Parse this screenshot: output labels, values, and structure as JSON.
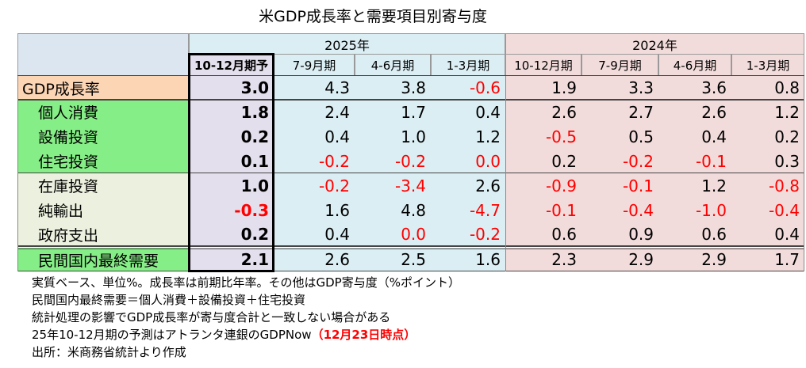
{
  "header": {
    "title": "米GDP成長率と需要項目別寄与度"
  },
  "table": {
    "years": [
      "2025年",
      "2024年"
    ],
    "quarters": [
      "10-12月期予",
      "7-9月期",
      "4-6月期",
      "1-3月期",
      "10-12月期",
      "7-9月期",
      "4-6月期",
      "1-3月期"
    ],
    "rows": [
      {
        "label": "GDP成長率",
        "label_color": "#fcd5b4",
        "values": [
          "3.0",
          "4.3",
          "3.8",
          "-0.6",
          "1.9",
          "3.3",
          "3.6",
          "0.8"
        ],
        "colors": [
          "#000000",
          "#000000",
          "#000000",
          "#ff0000",
          "#000000",
          "#000000",
          "#000000",
          "#000000"
        ]
      },
      {
        "label": "個人消費",
        "label_color": "#86ee86",
        "values": [
          "1.8",
          "2.4",
          "1.7",
          "0.4",
          "2.6",
          "2.7",
          "2.6",
          "1.2"
        ],
        "colors": [
          "#000000",
          "#000000",
          "#000000",
          "#000000",
          "#000000",
          "#000000",
          "#000000",
          "#000000"
        ]
      },
      {
        "label": "設備投資",
        "label_color": "#86ee86",
        "values": [
          "0.2",
          "0.4",
          "1.0",
          "1.2",
          "-0.5",
          "0.5",
          "0.4",
          "0.2"
        ],
        "colors": [
          "#000000",
          "#000000",
          "#000000",
          "#000000",
          "#ff0000",
          "#000000",
          "#000000",
          "#000000"
        ]
      },
      {
        "label": "住宅投資",
        "label_color": "#86ee86",
        "values": [
          "0.1",
          "-0.2",
          "-0.2",
          "0.0",
          "0.2",
          "-0.2",
          "-0.1",
          "0.3"
        ],
        "colors": [
          "#000000",
          "#ff0000",
          "#ff0000",
          "#ff0000",
          "#000000",
          "#ff0000",
          "#ff0000",
          "#000000"
        ]
      },
      {
        "label": "在庫投資",
        "label_color": "#ebf1de",
        "values": [
          "1.0",
          "-0.2",
          "-3.4",
          "2.6",
          "-0.9",
          "-0.1",
          "1.2",
          "-0.8"
        ],
        "colors": [
          "#000000",
          "#ff0000",
          "#ff0000",
          "#000000",
          "#ff0000",
          "#ff0000",
          "#000000",
          "#ff0000"
        ]
      },
      {
        "label": "純輸出",
        "label_color": "#ebf1de",
        "values": [
          "-0.3",
          "1.6",
          "4.8",
          "-4.7",
          "-0.1",
          "-0.4",
          "-1.0",
          "-0.4"
        ],
        "colors": [
          "#ff0000",
          "#000000",
          "#000000",
          "#ff0000",
          "#ff0000",
          "#ff0000",
          "#ff0000",
          "#ff0000"
        ]
      },
      {
        "label": "政府支出",
        "label_color": "#ebf1de",
        "values": [
          "0.2",
          "0.4",
          "0.0",
          "-0.2",
          "0.6",
          "0.9",
          "0.6",
          "0.4"
        ],
        "colors": [
          "#000000",
          "#000000",
          "#ff0000",
          "#ff0000",
          "#000000",
          "#000000",
          "#000000",
          "#000000"
        ]
      },
      {
        "label": "民間国内最終需要",
        "label_color": "#86ee86",
        "values": [
          "2.1",
          "2.6",
          "2.5",
          "1.6",
          "2.3",
          "2.9",
          "2.9",
          "1.7"
        ],
        "colors": [
          "#000000",
          "#000000",
          "#000000",
          "#000000",
          "#000000",
          "#000000",
          "#000000",
          "#000000"
        ]
      }
    ]
  },
  "notes": [
    {
      "text": "実質ベース、単位%。成長率は前期比年率。その他はGDP寄与度（%ポイント）"
    },
    {
      "text": "民間国内最終需要＝個人消費＋設備投資＋住宅投資"
    },
    {
      "text": "統計処理の影響でGDP成長率が寄与度合計と一致しない場合がある"
    },
    {
      "text": "25年10-12月期の予測はアトランタ連銀のGDPNow",
      "highlight": "（12月23日時点）"
    },
    {
      "text": "出所：米商務省統計より作成"
    }
  ]
}
